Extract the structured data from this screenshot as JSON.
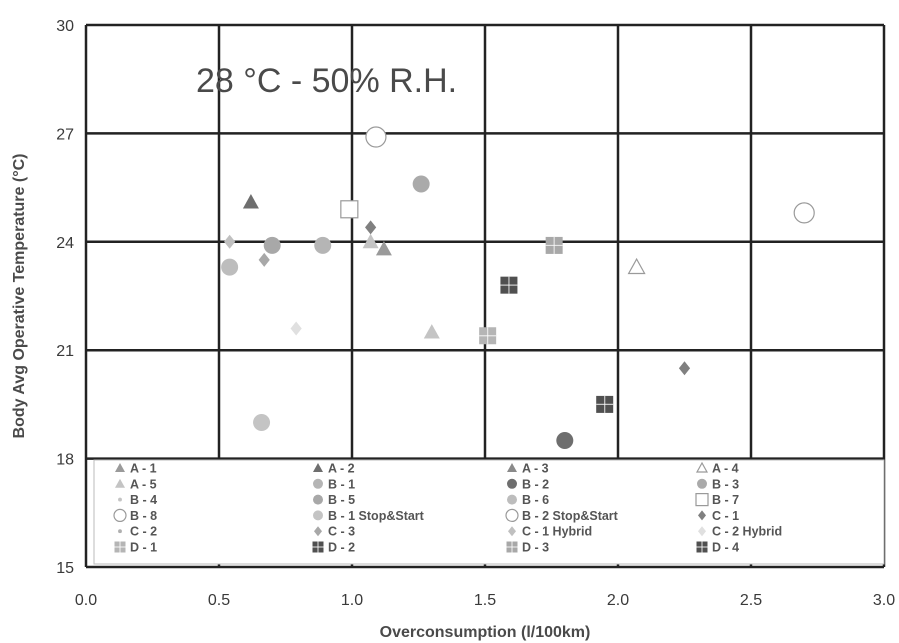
{
  "chart_data": {
    "type": "scatter",
    "title": "",
    "annotation": "28 °C - 50% R.H.",
    "xlabel": "Overconsumption (l/100km)",
    "ylabel": "Body Avg Operative Temperature (°C)",
    "xlim": [
      0.0,
      3.0
    ],
    "ylim": [
      15,
      30
    ],
    "x_ticks": [
      "0.0",
      "0.5",
      "1.0",
      "1.5",
      "2.0",
      "2.5",
      "3.0"
    ],
    "y_ticks": [
      "15",
      "18",
      "21",
      "24",
      "27",
      "30"
    ],
    "grid": true,
    "legend_position": "bottom-inside",
    "colors": {
      "grid": "#222222",
      "light": "#c4c4c4",
      "mid": "#a8a8a8",
      "dark": "#6e6e6e",
      "darkest": "#505050"
    },
    "series": [
      {
        "name": "A - 1",
        "marker": "triangle",
        "color": "#9a9a9a",
        "points": [
          {
            "x": 1.12,
            "y": 23.8
          }
        ]
      },
      {
        "name": "A - 2",
        "marker": "triangle",
        "color": "#6e6e6e",
        "points": [
          {
            "x": 0.62,
            "y": 25.1
          }
        ]
      },
      {
        "name": "A - 3",
        "marker": "triangle",
        "color": "#8a8a8a",
        "points": []
      },
      {
        "name": "A - 4",
        "marker": "triangle-open",
        "color": "#9a9a9a",
        "points": [
          {
            "x": 2.07,
            "y": 23.3
          }
        ]
      },
      {
        "name": "A - 5",
        "marker": "triangle",
        "color": "#c4c4c4",
        "points": [
          {
            "x": 1.07,
            "y": 24.0
          },
          {
            "x": 1.3,
            "y": 21.5
          }
        ]
      },
      {
        "name": "B - 1",
        "marker": "circle",
        "color": "#b5b5b5",
        "points": [
          {
            "x": 0.89,
            "y": 23.9
          }
        ]
      },
      {
        "name": "B - 2",
        "marker": "circle",
        "color": "#6e6e6e",
        "points": [
          {
            "x": 1.8,
            "y": 18.5
          }
        ]
      },
      {
        "name": "B - 3",
        "marker": "circle",
        "color": "#aaaaaa",
        "points": [
          {
            "x": 1.26,
            "y": 25.6
          }
        ]
      },
      {
        "name": "B - 4",
        "marker": "circle-small",
        "color": "#c4c4c4",
        "points": []
      },
      {
        "name": "B - 5",
        "marker": "circle",
        "color": "#a8a8a8",
        "points": [
          {
            "x": 0.7,
            "y": 23.9
          }
        ]
      },
      {
        "name": "B - 6",
        "marker": "circle",
        "color": "#bdbdbd",
        "points": [
          {
            "x": 0.54,
            "y": 23.3
          }
        ]
      },
      {
        "name": "B - 7",
        "marker": "square-open",
        "color": "#9a9a9a",
        "points": [
          {
            "x": 0.99,
            "y": 24.9
          }
        ]
      },
      {
        "name": "B - 8",
        "marker": "circle-open",
        "color": "#9a9a9a",
        "points": [
          {
            "x": 2.7,
            "y": 24.8
          }
        ]
      },
      {
        "name": "B - 1 Stop&Start",
        "marker": "circle",
        "color": "#c4c4c4",
        "points": [
          {
            "x": 0.66,
            "y": 19.0
          }
        ]
      },
      {
        "name": "B - 2 Stop&Start",
        "marker": "circle-open",
        "color": "#9a9a9a",
        "points": [
          {
            "x": 1.09,
            "y": 26.9
          }
        ]
      },
      {
        "name": "C - 1",
        "marker": "diamond",
        "color": "#808080",
        "points": [
          {
            "x": 1.07,
            "y": 24.4
          },
          {
            "x": 2.25,
            "y": 20.5
          }
        ]
      },
      {
        "name": "C - 2",
        "marker": "circle-small",
        "color": "#b0b0b0",
        "points": []
      },
      {
        "name": "C - 3",
        "marker": "diamond",
        "color": "#a8a8a8",
        "points": [
          {
            "x": 0.67,
            "y": 23.5
          }
        ]
      },
      {
        "name": "C - 1 Hybrid",
        "marker": "diamond",
        "color": "#c0c0c0",
        "points": [
          {
            "x": 0.54,
            "y": 24.0
          }
        ]
      },
      {
        "name": "C - 2 Hybrid",
        "marker": "diamond",
        "color": "#e0e0e0",
        "points": [
          {
            "x": 0.79,
            "y": 21.6
          }
        ]
      },
      {
        "name": "D - 1",
        "marker": "square-cross",
        "color": "#b5b5b5",
        "points": [
          {
            "x": 1.51,
            "y": 21.4
          }
        ]
      },
      {
        "name": "D - 2",
        "marker": "square-cross",
        "color": "#505050",
        "points": [
          {
            "x": 1.59,
            "y": 22.8
          }
        ]
      },
      {
        "name": "D - 3",
        "marker": "square-cross",
        "color": "#a8a8a8",
        "points": [
          {
            "x": 1.76,
            "y": 23.9
          }
        ]
      },
      {
        "name": "D - 4",
        "marker": "square-cross",
        "color": "#505050",
        "points": [
          {
            "x": 1.95,
            "y": 19.5
          }
        ]
      }
    ]
  }
}
